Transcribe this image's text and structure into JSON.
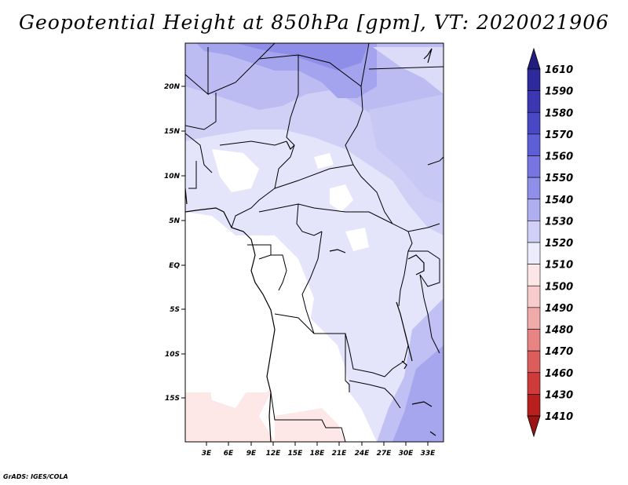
{
  "title": "Geopotential Height at 850hPa [gpm], VT: 2020021906",
  "credit": "GrADS: IGES/COLA",
  "map": {
    "lat_labels": [
      "20N",
      "15N",
      "10N",
      "5N",
      "EQ",
      "5S",
      "10S",
      "15S"
    ],
    "lon_labels": [
      "3E",
      "6E",
      "9E",
      "12E",
      "15E",
      "18E",
      "21E",
      "24E",
      "27E",
      "30E",
      "33E"
    ]
  },
  "colorbar": {
    "levels": [
      "1610",
      "1590",
      "1580",
      "1570",
      "1560",
      "1550",
      "1540",
      "1530",
      "1520",
      "1510",
      "1500",
      "1490",
      "1480",
      "1470",
      "1460",
      "1430",
      "1410"
    ],
    "colors": [
      "#241d80",
      "#2f2a9c",
      "#3b37b3",
      "#4b48c6",
      "#5e5ed6",
      "#7574e0",
      "#8f8ee8",
      "#aeaef0",
      "#cfcff7",
      "#ececfc",
      "#fde6e6",
      "#f8cccc",
      "#f1aaaa",
      "#e88484",
      "#dd5d5d",
      "#cf3a3a",
      "#b81f1f",
      "#9a1414"
    ]
  }
}
